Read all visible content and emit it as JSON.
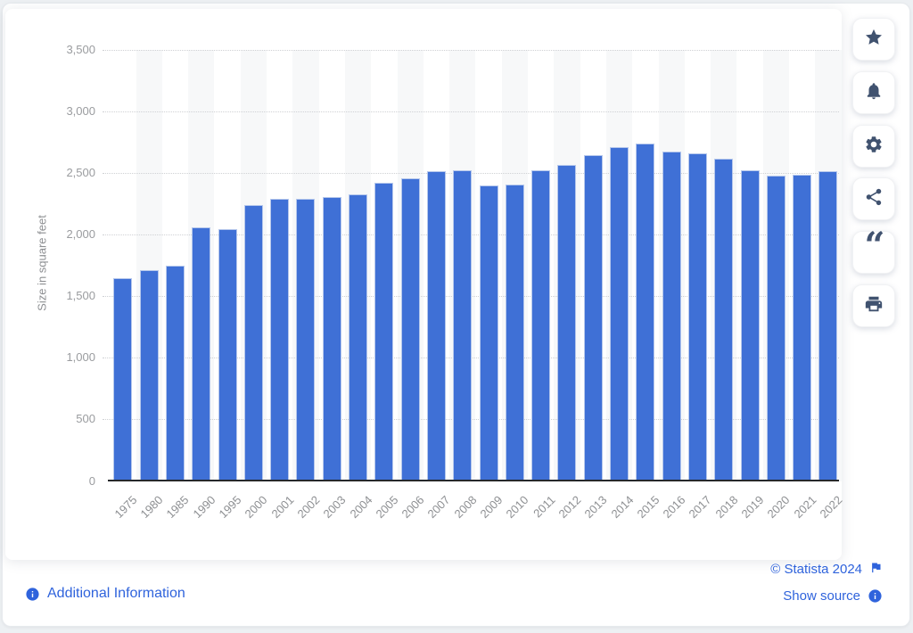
{
  "chart_data": {
    "type": "bar",
    "title": "",
    "ylabel": "Size in square feet",
    "categories": [
      "1975",
      "1980",
      "1985",
      "1990",
      "1995",
      "2000",
      "2001",
      "2002",
      "2003",
      "2004",
      "2005",
      "2006",
      "2007",
      "2008",
      "2009",
      "2010",
      "2011",
      "2012",
      "2013",
      "2014",
      "2015",
      "2016",
      "2017",
      "2018",
      "2019",
      "2020",
      "2021",
      "2022"
    ],
    "values": [
      1650,
      1715,
      1750,
      2060,
      2045,
      2240,
      2290,
      2290,
      2310,
      2325,
      2420,
      2460,
      2515,
      2525,
      2400,
      2405,
      2525,
      2565,
      2650,
      2715,
      2740,
      2675,
      2660,
      2615,
      2525,
      2480,
      2485,
      2515
    ],
    "ylim": [
      0,
      3500
    ],
    "ytick_interval": 500,
    "ytick_labels": [
      "0",
      "500",
      "1,000",
      "1,500",
      "2,000",
      "2,500",
      "3,000",
      "3,500"
    ],
    "grid": true,
    "legend": "none",
    "bar_color": "#3f70d6",
    "band_color": "#f7f8f9"
  },
  "toolbar": {
    "buttons": [
      {
        "id": "favorite",
        "icon": "star-icon"
      },
      {
        "id": "notifications",
        "icon": "bell-icon"
      },
      {
        "id": "settings",
        "icon": "gear-icon"
      },
      {
        "id": "share",
        "icon": "share-icon"
      },
      {
        "id": "cite",
        "icon": "quote-icon"
      },
      {
        "id": "print",
        "icon": "printer-icon"
      }
    ]
  },
  "footer": {
    "additional_info_label": "Additional Information",
    "copyright_label": "© Statista 2024",
    "show_source_label": "Show source"
  },
  "colors": {
    "bar": "#3f70d6",
    "link_blue": "#2f63dc",
    "icon_navy": "#40526f",
    "axis_text": "#8d8f92"
  }
}
